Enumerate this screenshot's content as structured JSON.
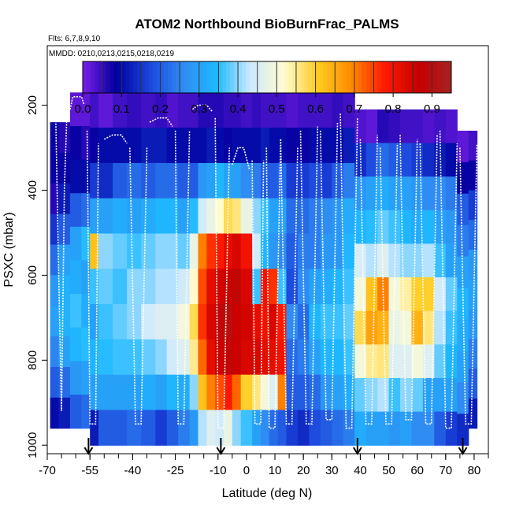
{
  "chart_data": {
    "type": "heatmap",
    "title": "ATOM2 Northbound BioBurnFrac_PALMS",
    "flights_note": "Flts: 6,7,8,9,10",
    "dates_note": "MMDD: 0210,0213,0215,0218,0219",
    "xlabel": "Latitude (deg N)",
    "ylabel": "PSXC (mbar)",
    "xlim": [
      -70,
      85
    ],
    "ylim": [
      1020,
      60
    ],
    "x_ticks": [
      -70,
      -55,
      -40,
      -25,
      -10,
      0,
      10,
      20,
      30,
      40,
      50,
      60,
      70,
      80
    ],
    "x_tick_labels": [
      "-70",
      "-55",
      "-40",
      "-25",
      "-10",
      "0",
      "10",
      "20",
      "30",
      "40",
      "50",
      "60",
      "70",
      "80"
    ],
    "y_ticks": [
      200,
      400,
      600,
      800,
      1000
    ],
    "y_tick_labels": [
      "200",
      "400",
      "600",
      "800",
      "1000"
    ],
    "colorbar": {
      "min": 0.0,
      "max": 0.95,
      "ticks": [
        0.0,
        0.1,
        0.2,
        0.3,
        0.4,
        0.5,
        0.6,
        0.7,
        0.8,
        0.9
      ],
      "tick_labels": [
        "0.0",
        "0.1",
        "0.2",
        "0.3",
        "0.4",
        "0.5",
        "0.6",
        "0.7",
        "0.8",
        "0.9"
      ],
      "colors": [
        "#7a1fe8",
        "#00009e",
        "#1c46dc",
        "#2f8cf2",
        "#1eb9ff",
        "#cde9ff",
        "#fffcd0",
        "#ffcc22",
        "#ff8c00",
        "#ff1a00",
        "#c80000",
        "#a52222"
      ]
    },
    "arrows_lat": [
      -55.5,
      -9,
      39,
      76
    ],
    "columns": [
      {
        "x0": -69,
        "x1": -66,
        "top": 240,
        "bottom": 960,
        "cells": [
          0.08,
          0.08,
          0.06,
          0.15,
          0.22,
          0.28,
          0.3,
          0.25,
          0.2,
          0.1
        ]
      },
      {
        "x0": -66,
        "x1": -62,
        "top": 240,
        "bottom": 960,
        "cells": [
          0.06,
          0.08,
          0.12,
          0.2,
          0.3,
          0.33,
          0.33,
          0.3,
          0.22,
          0.12
        ]
      },
      {
        "x0": -62,
        "x1": -58,
        "top": 170,
        "bottom": 960,
        "cells": [
          0.02,
          0.08,
          0.1,
          0.2,
          0.3,
          0.32,
          0.36,
          0.34,
          0.28,
          0.2
        ]
      },
      {
        "x0": -58,
        "x1": -55,
        "top": 170,
        "bottom": 960,
        "cells": [
          0.02,
          0.06,
          0.1,
          0.22,
          0.35,
          0.3,
          0.32,
          0.35,
          0.3,
          0.22
        ]
      },
      {
        "x0": -55,
        "x1": -52,
        "top": 170,
        "bottom": 1000,
        "cells": [
          0.04,
          0.08,
          0.16,
          0.3,
          0.62,
          0.36,
          0.3,
          0.34,
          0.3,
          0.12
        ]
      },
      {
        "x0": -52,
        "x1": -47,
        "top": 170,
        "bottom": 1000,
        "cells": [
          0.02,
          0.1,
          0.14,
          0.3,
          0.4,
          0.38,
          0.36,
          0.35,
          0.3,
          0.2
        ]
      },
      {
        "x0": -47,
        "x1": -42,
        "top": 170,
        "bottom": 1000,
        "cells": [
          0.04,
          0.1,
          0.2,
          0.32,
          0.38,
          0.36,
          0.38,
          0.36,
          0.3,
          0.2
        ]
      },
      {
        "x0": -42,
        "x1": -37,
        "top": 170,
        "bottom": 1000,
        "cells": [
          0.05,
          0.1,
          0.22,
          0.3,
          0.36,
          0.4,
          0.4,
          0.36,
          0.3,
          0.22
        ]
      },
      {
        "x0": -37,
        "x1": -32,
        "top": 170,
        "bottom": 1000,
        "cells": [
          0.04,
          0.12,
          0.2,
          0.32,
          0.38,
          0.4,
          0.44,
          0.38,
          0.32,
          0.2
        ]
      },
      {
        "x0": -32,
        "x1": -28,
        "top": 170,
        "bottom": 1000,
        "cells": [
          0.05,
          0.12,
          0.22,
          0.34,
          0.4,
          0.42,
          0.46,
          0.4,
          0.3,
          0.16
        ]
      },
      {
        "x0": -28,
        "x1": -24,
        "top": 170,
        "bottom": 1000,
        "cells": [
          0.03,
          0.1,
          0.22,
          0.34,
          0.4,
          0.42,
          0.46,
          0.44,
          0.34,
          0.2
        ]
      },
      {
        "x0": -24,
        "x1": -20,
        "top": 170,
        "bottom": 1000,
        "cells": [
          0.04,
          0.1,
          0.2,
          0.3,
          0.38,
          0.44,
          0.5,
          0.46,
          0.32,
          0.24
        ]
      },
      {
        "x0": -20,
        "x1": -17,
        "top": 170,
        "bottom": 1000,
        "cells": [
          0.04,
          0.1,
          0.2,
          0.35,
          0.48,
          0.52,
          0.58,
          0.55,
          0.4,
          0.28
        ]
      },
      {
        "x0": -17,
        "x1": -14,
        "top": 170,
        "bottom": 1000,
        "cells": [
          0.06,
          0.1,
          0.28,
          0.44,
          0.7,
          0.74,
          0.76,
          0.72,
          0.62,
          0.42
        ]
      },
      {
        "x0": -14,
        "x1": -11,
        "top": 170,
        "bottom": 1000,
        "cells": [
          0.06,
          0.12,
          0.3,
          0.48,
          0.76,
          0.82,
          0.84,
          0.82,
          0.7,
          0.46
        ]
      },
      {
        "x0": -11,
        "x1": -8,
        "top": 170,
        "bottom": 1000,
        "cells": [
          0.06,
          0.1,
          0.34,
          0.52,
          0.78,
          0.85,
          0.88,
          0.86,
          0.74,
          0.44
        ]
      },
      {
        "x0": -8,
        "x1": -5,
        "top": 170,
        "bottom": 1000,
        "cells": [
          0.05,
          0.08,
          0.3,
          0.58,
          0.82,
          0.86,
          0.9,
          0.88,
          0.78,
          0.48
        ]
      },
      {
        "x0": -5,
        "x1": -2,
        "top": 170,
        "bottom": 1000,
        "cells": [
          0.05,
          0.1,
          0.3,
          0.56,
          0.84,
          0.88,
          0.86,
          0.86,
          0.72,
          0.4
        ]
      },
      {
        "x0": -2,
        "x1": 2,
        "top": 170,
        "bottom": 1000,
        "cells": [
          0.04,
          0.1,
          0.26,
          0.48,
          0.8,
          0.84,
          0.85,
          0.84,
          0.6,
          0.36
        ]
      },
      {
        "x0": 2,
        "x1": 5,
        "top": 170,
        "bottom": 1000,
        "cells": [
          0.05,
          0.1,
          0.24,
          0.4,
          0.44,
          0.36,
          0.82,
          0.84,
          0.56,
          0.3
        ]
      },
      {
        "x0": 5,
        "x1": 8,
        "top": 170,
        "bottom": 1000,
        "cells": [
          0.04,
          0.12,
          0.2,
          0.36,
          0.34,
          0.8,
          0.8,
          0.82,
          0.5,
          0.26
        ]
      },
      {
        "x0": 8,
        "x1": 11,
        "top": 170,
        "bottom": 1000,
        "cells": [
          0.04,
          0.1,
          0.2,
          0.3,
          0.28,
          0.76,
          0.84,
          0.82,
          0.46,
          0.22
        ]
      },
      {
        "x0": 11,
        "x1": 14,
        "top": 170,
        "bottom": 1000,
        "cells": [
          0.04,
          0.1,
          0.22,
          0.3,
          0.26,
          0.36,
          0.78,
          0.8,
          0.7,
          0.2
        ]
      },
      {
        "x0": 14,
        "x1": 18,
        "top": 170,
        "bottom": 1000,
        "cells": [
          0.03,
          0.08,
          0.16,
          0.22,
          0.2,
          0.18,
          0.26,
          0.22,
          0.2,
          0.16
        ]
      },
      {
        "x0": 18,
        "x1": 22,
        "top": 170,
        "bottom": 1000,
        "cells": [
          0.04,
          0.08,
          0.16,
          0.22,
          0.24,
          0.26,
          0.22,
          0.24,
          0.2,
          0.14
        ]
      },
      {
        "x0": 22,
        "x1": 26,
        "top": 170,
        "bottom": 1000,
        "cells": [
          0.04,
          0.1,
          0.18,
          0.24,
          0.24,
          0.3,
          0.34,
          0.3,
          0.22,
          0.18
        ]
      },
      {
        "x0": 26,
        "x1": 30,
        "top": 170,
        "bottom": 1000,
        "cells": [
          0.04,
          0.1,
          0.16,
          0.26,
          0.28,
          0.32,
          0.36,
          0.34,
          0.28,
          0.2
        ]
      },
      {
        "x0": 30,
        "x1": 34,
        "top": 170,
        "bottom": 1000,
        "cells": [
          0.05,
          0.1,
          0.2,
          0.28,
          0.28,
          0.34,
          0.36,
          0.34,
          0.3,
          0.22
        ]
      },
      {
        "x0": 34,
        "x1": 38,
        "top": 170,
        "bottom": 1000,
        "cells": [
          0.04,
          0.12,
          0.24,
          0.32,
          0.34,
          0.36,
          0.38,
          0.36,
          0.32,
          0.24
        ]
      },
      {
        "x0": 38,
        "x1": 42,
        "top": 210,
        "bottom": 1000,
        "cells": [
          0.03,
          0.14,
          0.28,
          0.34,
          0.45,
          0.5,
          0.58,
          0.5,
          0.38,
          0.32
        ]
      },
      {
        "x0": 42,
        "x1": 46,
        "top": 210,
        "bottom": 1000,
        "cells": [
          0.02,
          0.18,
          0.3,
          0.35,
          0.42,
          0.62,
          0.66,
          0.55,
          0.4,
          0.3
        ]
      },
      {
        "x0": 46,
        "x1": 50,
        "top": 210,
        "bottom": 1000,
        "cells": [
          0.06,
          0.22,
          0.32,
          0.38,
          0.46,
          0.7,
          0.64,
          0.56,
          0.42,
          0.3
        ]
      },
      {
        "x0": 50,
        "x1": 54,
        "top": 210,
        "bottom": 1000,
        "cells": [
          0.05,
          0.2,
          0.3,
          0.36,
          0.42,
          0.5,
          0.48,
          0.46,
          0.36,
          0.28
        ]
      },
      {
        "x0": 54,
        "x1": 58,
        "top": 210,
        "bottom": 1000,
        "cells": [
          0.04,
          0.18,
          0.3,
          0.34,
          0.4,
          0.54,
          0.5,
          0.46,
          0.4,
          0.3
        ]
      },
      {
        "x0": 58,
        "x1": 62,
        "top": 210,
        "bottom": 1000,
        "cells": [
          0.04,
          0.16,
          0.28,
          0.32,
          0.4,
          0.6,
          0.64,
          0.5,
          0.38,
          0.26
        ]
      },
      {
        "x0": 62,
        "x1": 66,
        "top": 210,
        "bottom": 1000,
        "cells": [
          0.03,
          0.14,
          0.26,
          0.34,
          0.42,
          0.6,
          0.56,
          0.46,
          0.3,
          0.26
        ]
      },
      {
        "x0": 66,
        "x1": 70,
        "top": 210,
        "bottom": 1000,
        "cells": [
          0.04,
          0.12,
          0.26,
          0.3,
          0.36,
          0.44,
          0.42,
          0.38,
          0.3,
          0.2
        ]
      },
      {
        "x0": 70,
        "x1": 74,
        "top": 210,
        "bottom": 1000,
        "cells": [
          0.03,
          0.1,
          0.24,
          0.28,
          0.3,
          0.38,
          0.36,
          0.34,
          0.3,
          0.16
        ]
      },
      {
        "x0": 74,
        "x1": 78,
        "top": 260,
        "bottom": 1000,
        "cells": [
          0.02,
          0.08,
          0.2,
          0.24,
          0.3,
          0.34,
          0.32,
          0.3,
          0.26,
          0.14
        ]
      },
      {
        "x0": 78,
        "x1": 81,
        "top": 260,
        "bottom": 960,
        "cells": [
          0.04,
          0.08,
          0.16,
          0.22,
          0.28,
          0.3,
          0.28,
          0.24,
          0.2,
          0.12
        ]
      }
    ],
    "profiles": [
      {
        "x": [
          -67,
          -66,
          -65,
          -64,
          -63
        ],
        "y": [
          230,
          600,
          920,
          400,
          200
        ]
      },
      {
        "x": [
          -62,
          -61,
          -59,
          -58,
          -57
        ],
        "y": [
          210,
          180,
          180,
          180,
          200
        ]
      },
      {
        "x": [
          -56,
          -55,
          -53,
          -52
        ],
        "y": [
          260,
          950,
          950,
          290
        ]
      },
      {
        "x": [
          -50,
          -47,
          -44,
          -42
        ],
        "y": [
          280,
          270,
          270,
          290
        ]
      },
      {
        "x": [
          -41,
          -39,
          -37,
          -35
        ],
        "y": [
          300,
          950,
          950,
          300
        ]
      },
      {
        "x": [
          -34,
          -31,
          -28,
          -26
        ],
        "y": [
          240,
          230,
          230,
          250
        ]
      },
      {
        "x": [
          -25,
          -24,
          -22,
          -20
        ],
        "y": [
          260,
          950,
          950,
          260
        ]
      },
      {
        "x": [
          -19,
          -17,
          -14,
          -12
        ],
        "y": [
          210,
          200,
          200,
          215
        ]
      },
      {
        "x": [
          -11,
          -10,
          -8,
          -6
        ],
        "y": [
          230,
          960,
          960,
          300
        ]
      },
      {
        "x": [
          -5,
          -3,
          -1,
          1
        ],
        "y": [
          340,
          300,
          300,
          350
        ]
      },
      {
        "x": [
          2,
          3,
          5,
          6
        ],
        "y": [
          330,
          950,
          950,
          330
        ]
      },
      {
        "x": [
          7,
          8,
          10,
          12
        ],
        "y": [
          300,
          960,
          960,
          280
        ]
      },
      {
        "x": [
          12,
          14,
          16,
          18
        ],
        "y": [
          280,
          950,
          950,
          300
        ]
      },
      {
        "x": [
          19,
          21,
          23,
          25
        ],
        "y": [
          260,
          950,
          950,
          250
        ]
      },
      {
        "x": [
          26,
          28,
          30,
          32
        ],
        "y": [
          260,
          940,
          940,
          240
        ]
      },
      {
        "x": [
          33,
          35,
          37,
          39
        ],
        "y": [
          220,
          960,
          960,
          230
        ]
      },
      {
        "x": [
          40,
          42,
          44,
          46
        ],
        "y": [
          280,
          950,
          950,
          270
        ]
      },
      {
        "x": [
          47,
          49,
          51,
          53
        ],
        "y": [
          300,
          950,
          950,
          290
        ]
      },
      {
        "x": [
          54,
          56,
          58,
          60
        ],
        "y": [
          270,
          940,
          940,
          280
        ]
      },
      {
        "x": [
          61,
          63,
          65,
          67
        ],
        "y": [
          290,
          950,
          950,
          270
        ]
      },
      {
        "x": [
          68,
          70,
          72,
          74
        ],
        "y": [
          260,
          960,
          960,
          290
        ]
      },
      {
        "x": [
          75,
          77,
          79,
          81
        ],
        "y": [
          300,
          950,
          950,
          290
        ]
      }
    ]
  }
}
